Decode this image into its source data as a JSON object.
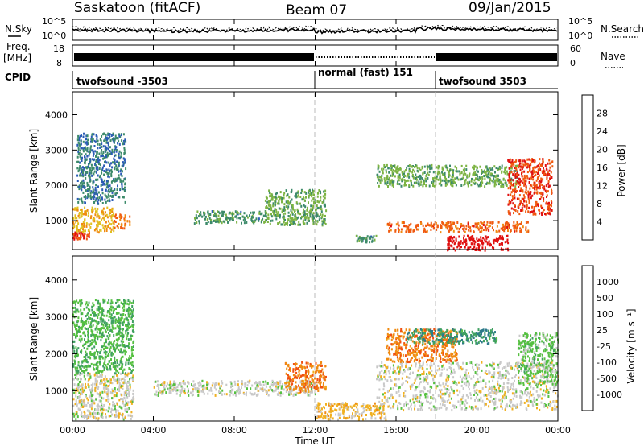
{
  "header": {
    "station": "Saskatoon (fitACF)",
    "beam": "Beam 07",
    "date": "09/Jan/2015"
  },
  "top_panels": {
    "nsky_label": "N.Sky",
    "nsearch_label": "N.Search",
    "left_top_tick": "10^5",
    "left_bot_tick": "10^0",
    "right_top_tick": "10^5",
    "right_bot_tick": "10^0",
    "freq_label_1": "Freq.",
    "freq_label_2": "[MHz]",
    "freq_top_tick": "18",
    "freq_bot_tick": "8",
    "nave_label": "Nave",
    "nave_top_tick": "60",
    "nave_bot_tick": "0",
    "cpid_label": "CPID",
    "cpid_segments": [
      {
        "text": "twofsound -3503",
        "start_hour": 0
      },
      {
        "text": "normal (fast) 151",
        "start_hour": 12
      },
      {
        "text": "twofsound 3503",
        "start_hour": 18
      }
    ]
  },
  "axes": {
    "x_ticks": [
      "00:00",
      "04:00",
      "08:00",
      "12:00",
      "16:00",
      "20:00",
      "00:00"
    ],
    "x_label": "Time UT",
    "y_ticks": [
      "1000",
      "2000",
      "3000",
      "4000"
    ],
    "y_label": "Slant Range [km]"
  },
  "power_colorbar": {
    "label": "Power [dB]",
    "ticks": [
      "4",
      "8",
      "12",
      "16",
      "20",
      "24",
      "28"
    ],
    "colors": [
      "#1a1aff",
      "#2a5bb5",
      "#3c8a6a",
      "#7cb342",
      "#e0c020",
      "#f08a10",
      "#f05a10",
      "#e01010"
    ]
  },
  "velocity_colorbar": {
    "label": "Velocity [m s⁻¹]",
    "ticks": [
      "1000",
      "500",
      "100",
      "25",
      "-25",
      "-100",
      "-500",
      "-1000"
    ],
    "colors": [
      "#2244bb",
      "#2d7a8a",
      "#3fa060",
      "#55c040",
      "#c8c8c8",
      "#f0b020",
      "#f08a10",
      "#f05010",
      "#e01010"
    ]
  },
  "chart_data": {
    "type": "heatmap",
    "title": "Saskatoon (fitACF) Beam 07 09/Jan/2015",
    "xlabel": "Time UT",
    "ylabel": "Slant Range [km]",
    "xlim_hours": [
      0,
      24
    ],
    "ylim_km": [
      180,
      4650
    ],
    "panels": [
      {
        "name": "Power",
        "units": "dB",
        "clim": [
          0,
          30
        ],
        "features": [
          {
            "t0": 0.0,
            "t1": 0.8,
            "r0": 500,
            "r1": 700,
            "value": 26
          },
          {
            "t0": 0.0,
            "t1": 2.0,
            "r0": 700,
            "r1": 1400,
            "value": 18
          },
          {
            "t0": 2.0,
            "t1": 2.8,
            "r0": 800,
            "r1": 1200,
            "value": 22
          },
          {
            "t0": 0.2,
            "t1": 2.6,
            "r0": 1500,
            "r1": 3500,
            "value": 8
          },
          {
            "t0": 6.0,
            "t1": 9.5,
            "r0": 950,
            "r1": 1300,
            "value": 10
          },
          {
            "t0": 9.5,
            "t1": 12.5,
            "r0": 900,
            "r1": 1900,
            "value": 12
          },
          {
            "t0": 14.0,
            "t1": 15.0,
            "r0": 400,
            "r1": 600,
            "value": 10
          },
          {
            "t0": 15.5,
            "t1": 22.5,
            "r0": 700,
            "r1": 1000,
            "value": 24
          },
          {
            "t0": 18.5,
            "t1": 21.5,
            "r0": 180,
            "r1": 600,
            "value": 29
          },
          {
            "t0": 15.0,
            "t1": 22.0,
            "r0": 2000,
            "r1": 2600,
            "value": 12
          },
          {
            "t0": 21.5,
            "t1": 23.7,
            "r0": 1200,
            "r1": 2800,
            "value": 26
          }
        ]
      },
      {
        "name": "Velocity",
        "units": "m s^-1",
        "clim": [
          -1000,
          1000
        ],
        "features": [
          {
            "t0": 0.0,
            "t1": 3.0,
            "r0": 250,
            "r1": 1500,
            "value": 0
          },
          {
            "t0": 0.0,
            "t1": 3.0,
            "r0": 1500,
            "r1": 3500,
            "value": 300
          },
          {
            "t0": 4.0,
            "t1": 12.0,
            "r0": 900,
            "r1": 1300,
            "value": 0
          },
          {
            "t0": 10.5,
            "t1": 12.5,
            "r0": 1000,
            "r1": 1800,
            "value": -500
          },
          {
            "t0": 12.0,
            "t1": 15.5,
            "r0": 250,
            "r1": 700,
            "value": -200
          },
          {
            "t0": 15.0,
            "t1": 24.0,
            "r0": 500,
            "r1": 1800,
            "value": 0
          },
          {
            "t0": 15.5,
            "t1": 19.0,
            "r0": 1800,
            "r1": 2700,
            "value": -500
          },
          {
            "t0": 16.5,
            "t1": 21.0,
            "r0": 2300,
            "r1": 2700,
            "value": 500
          },
          {
            "t0": 22.0,
            "t1": 24.0,
            "r0": 1200,
            "r1": 2600,
            "value": 200
          }
        ]
      }
    ],
    "cpid_segments": [
      {
        "name": "twofsound -3503",
        "t0": 0,
        "t1": 12
      },
      {
        "name": "normal (fast) 151",
        "t0": 12,
        "t1": 18
      },
      {
        "name": "twofsound 3503",
        "t0": 18,
        "t1": 24
      }
    ],
    "grid": false
  }
}
